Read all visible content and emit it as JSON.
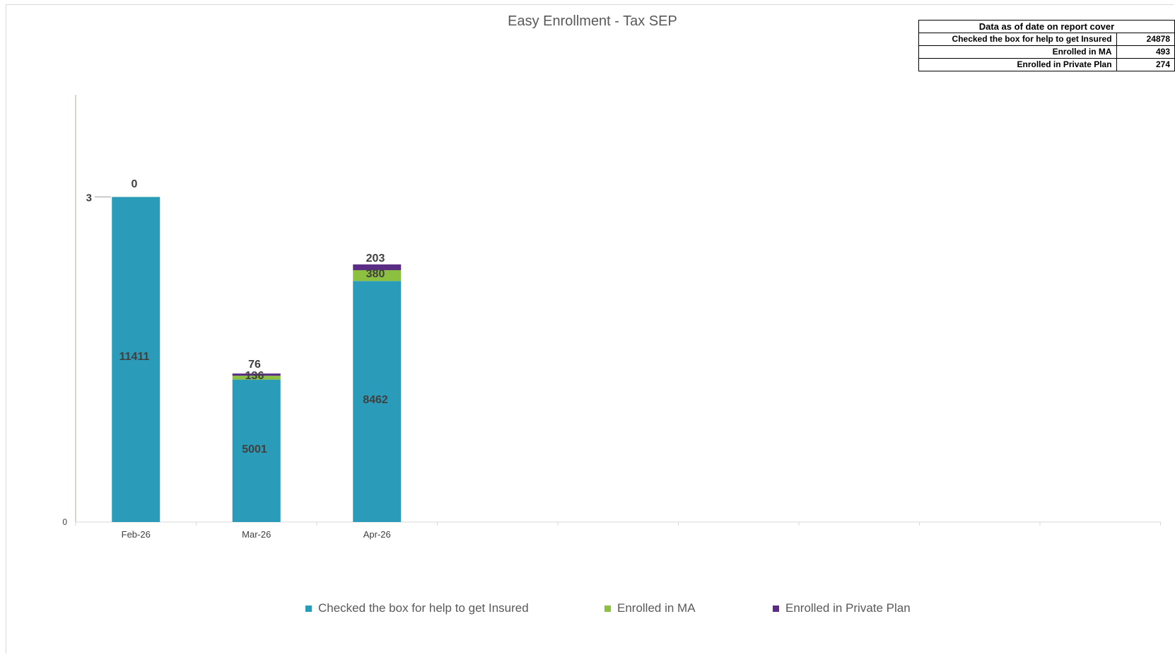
{
  "colors": {
    "checked": "#2a9bb8",
    "ma": "#8cc041",
    "private": "#5b2c83",
    "axis": "#b5b089",
    "label": "#404040"
  },
  "table": {
    "header": "Data as of date on report cover",
    "rows": [
      {
        "label": "Checked the box for help to get Insured",
        "value": "24878"
      },
      {
        "label": "Enrolled in MA",
        "value": "493"
      },
      {
        "label": "Enrolled in Private Plan",
        "value": "274"
      }
    ]
  },
  "chart_data": {
    "type": "bar",
    "stacked": true,
    "title": "Easy Enrollment - Tax SEP",
    "xlabel": "",
    "ylabel": "",
    "categories": [
      "Feb-26",
      "Mar-26",
      "Apr-26"
    ],
    "series": [
      {
        "name": "Checked the box for help to get Insured",
        "values": [
          11411,
          5001,
          8462
        ],
        "color": "#2a9bb8"
      },
      {
        "name": "Enrolled in MA",
        "values": [
          3,
          136,
          380
        ],
        "color": "#8cc041"
      },
      {
        "name": "Enrolled in Private Plan",
        "values": [
          0,
          76,
          203
        ],
        "color": "#5b2c83"
      }
    ],
    "y_tick_labels": [
      "0",
      "3"
    ],
    "ylim": [
      0,
      15000
    ],
    "legend_position": "bottom",
    "grid": false
  }
}
